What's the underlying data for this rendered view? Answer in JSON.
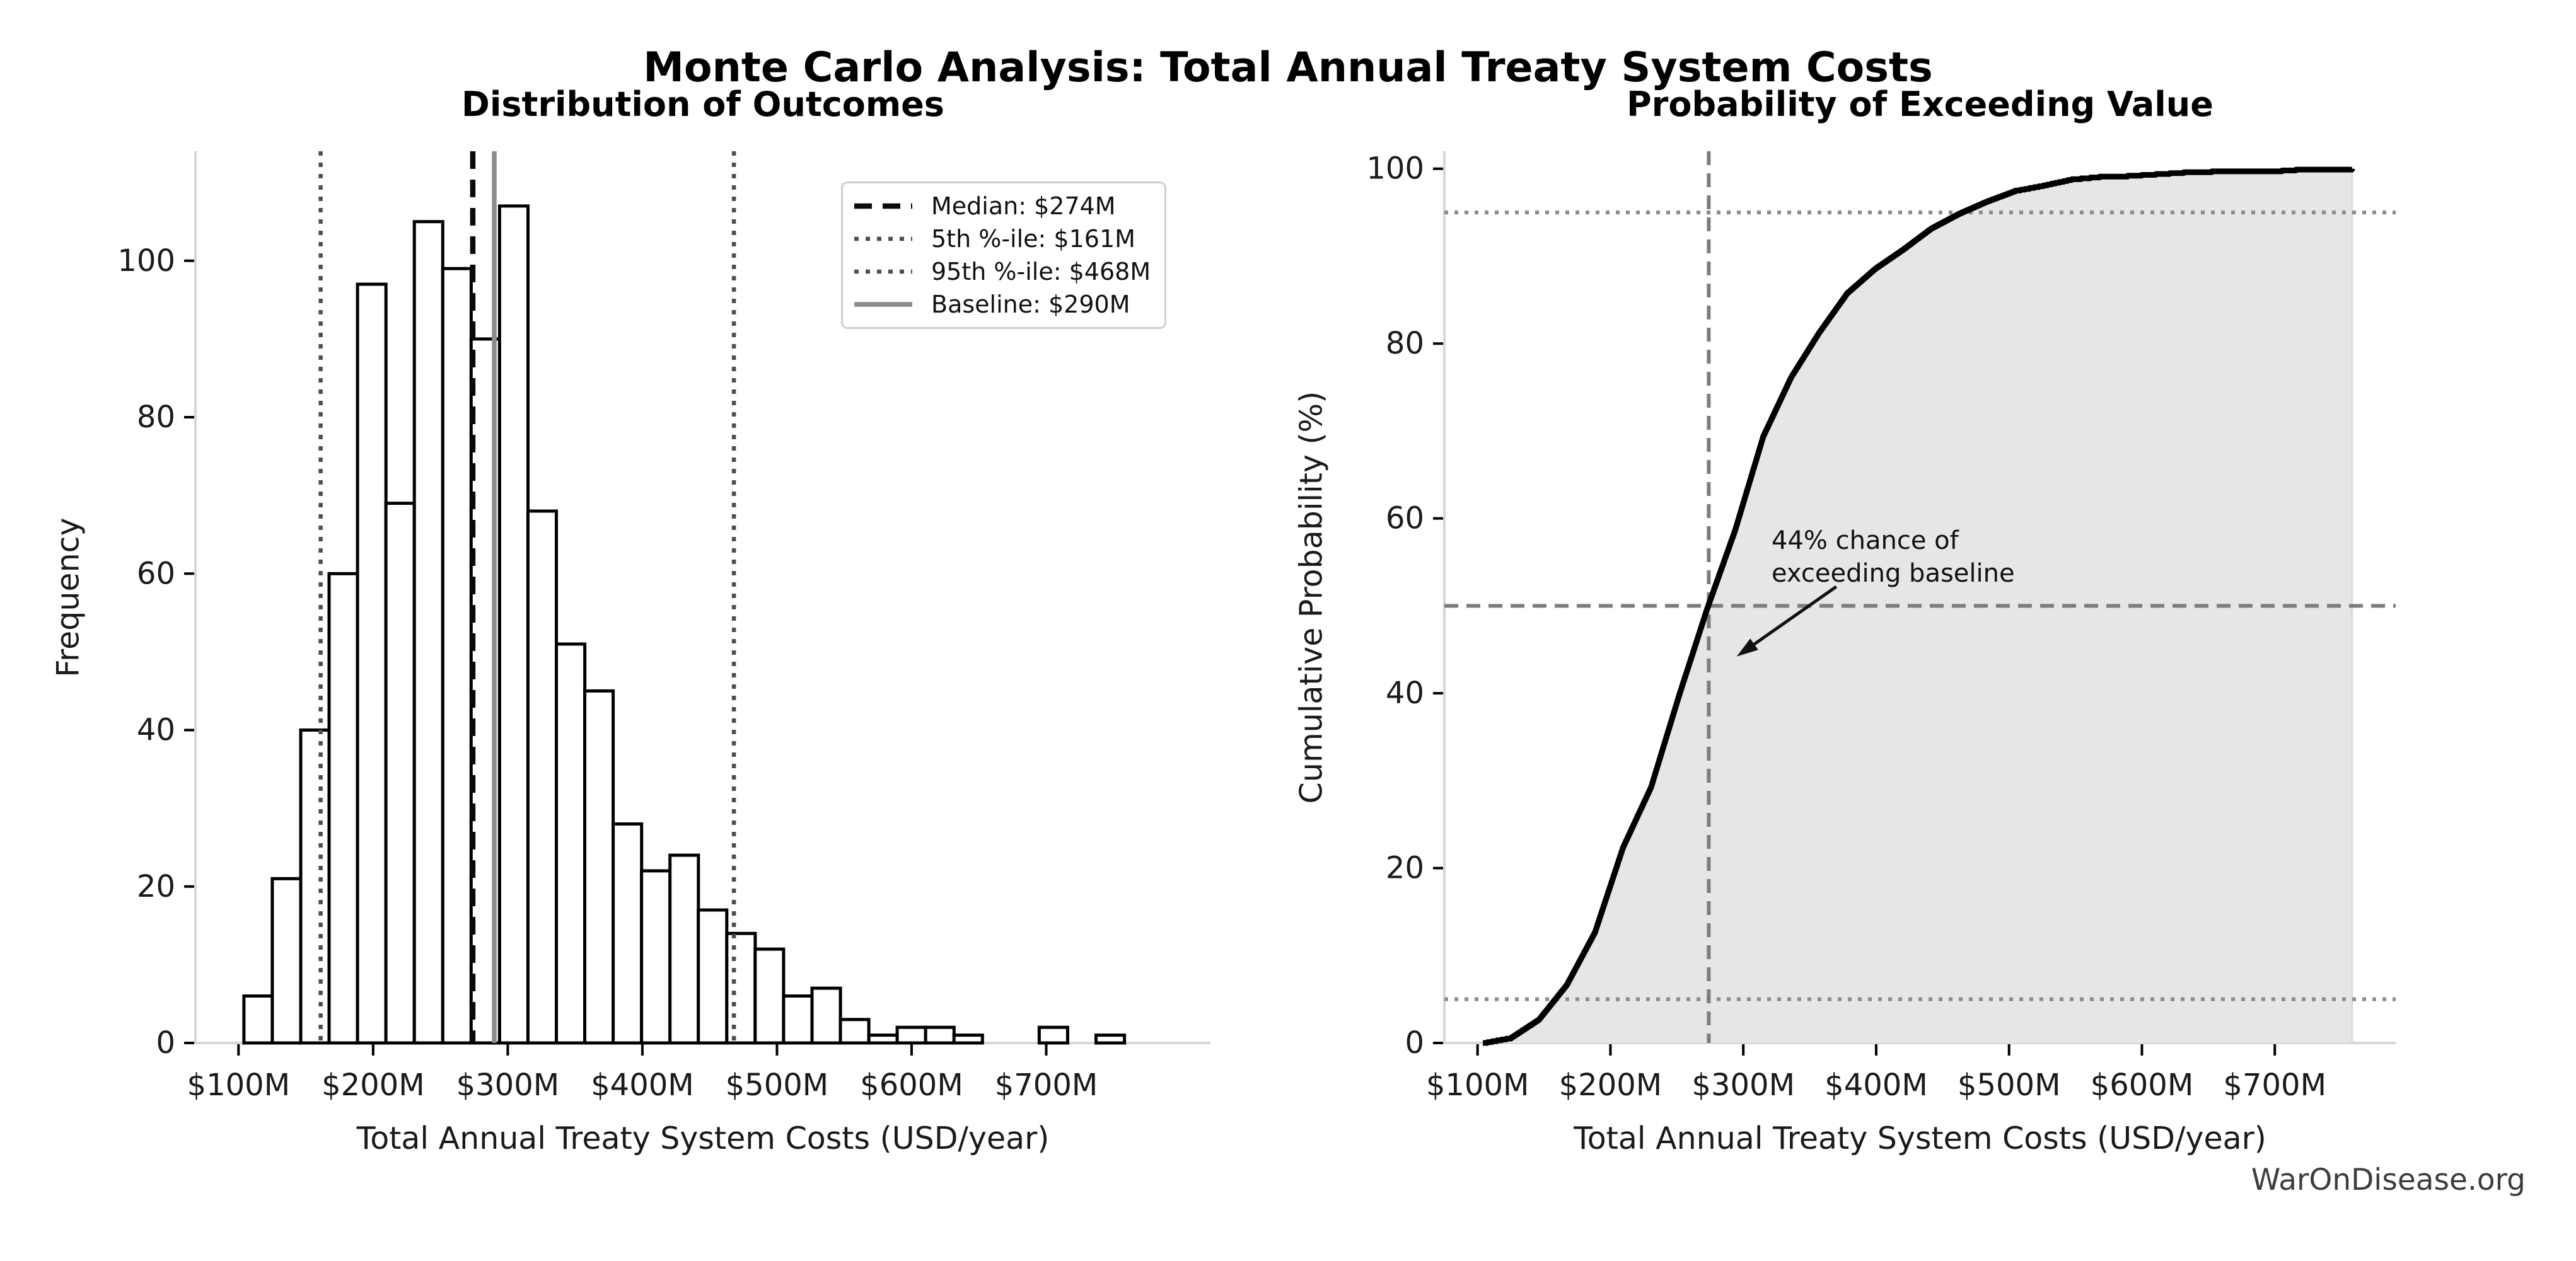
{
  "page": {
    "title": "Monte Carlo Analysis: Total Annual Treaty System Costs",
    "watermark": "WarOnDisease.org"
  },
  "colors": {
    "bar_fill": "#ffffff",
    "bar_edge": "#000000",
    "median_line": "#0a0a0a",
    "percentile_line": "#4d4d4d",
    "baseline_line": "#8c8c8c",
    "cdf_line": "#000000",
    "cdf_fill": "#e6e6e6",
    "crosshair_dashed": "#7d7d7d",
    "dotted_levels": "#8c8c8c",
    "spine": "#d6d6d6",
    "tick": "#000000",
    "text": "#1a1a1a",
    "watermark": "#3d3d3d"
  },
  "chart_data": [
    {
      "type": "bar",
      "title": "Distribution of Outcomes",
      "xlabel": "Total Annual Treaty System Costs (USD/year)",
      "ylabel": "Frequency",
      "bin_start": 104,
      "bin_width": 21.1,
      "counts": [
        6,
        21,
        40,
        60,
        97,
        69,
        105,
        99,
        90,
        107,
        68,
        51,
        45,
        28,
        22,
        24,
        17,
        14,
        12,
        6,
        7,
        3,
        1,
        2,
        2,
        1,
        0,
        0,
        2,
        0,
        1
      ],
      "x_tick_values": [
        100,
        200,
        300,
        400,
        500,
        600,
        700
      ],
      "x_tick_labels": [
        "$100M",
        "$200M",
        "$300M",
        "$400M",
        "$500M",
        "$600M",
        "$700M"
      ],
      "y_tick_values": [
        0,
        20,
        40,
        60,
        80,
        100
      ],
      "xlim": [
        68,
        822
      ],
      "ylim": [
        0,
        114
      ],
      "grid": false,
      "legend_position": "upper right",
      "ref_lines": [
        {
          "label": "Median: $274M",
          "value": 274,
          "style": "dashed-black"
        },
        {
          "label": "5th %-ile: $161M",
          "value": 161,
          "style": "dotted-dark"
        },
        {
          "label": "95th %-ile: $468M",
          "value": 468,
          "style": "dotted-dark"
        },
        {
          "label": "Baseline: $290M",
          "value": 290,
          "style": "solid-gray"
        }
      ]
    },
    {
      "type": "line",
      "title": "Probability of Exceeding Value",
      "xlabel": "Total Annual Treaty System Costs (USD/year)",
      "ylabel": "Cumulative Probability (%)",
      "x_tick_values": [
        100,
        200,
        300,
        400,
        500,
        600,
        700
      ],
      "x_tick_labels": [
        "$100M",
        "$200M",
        "$300M",
        "$400M",
        "$500M",
        "$600M",
        "$700M"
      ],
      "y_tick_values": [
        0,
        20,
        40,
        60,
        80,
        100
      ],
      "xlim": [
        75,
        791
      ],
      "ylim": [
        0,
        102
      ],
      "cdf_edges": [
        104,
        125.1,
        146.2,
        167.3,
        188.4,
        209.5,
        230.6,
        251.7,
        272.8,
        293.9,
        315,
        336.1,
        357.2,
        378.3,
        399.4,
        420.5,
        441.6,
        462.7,
        483.8,
        504.9,
        526,
        547.1,
        568.2,
        589.3,
        610.4,
        631.5,
        652.6,
        673.7,
        694.8,
        715.9,
        737,
        758.1
      ],
      "cdf_cum_pct": [
        0,
        0.6,
        2.7,
        6.7,
        12.7,
        22.4,
        29.3,
        39.8,
        49.7,
        58.7,
        69.4,
        76.2,
        81.3,
        85.8,
        88.6,
        90.8,
        93.2,
        94.9,
        96.3,
        97.5,
        98.1,
        98.8,
        99.1,
        99.2,
        99.4,
        99.6,
        99.7,
        99.7,
        99.7,
        99.9,
        99.9,
        100
      ],
      "crosshair": {
        "x_value": 274,
        "y_pct": 50
      },
      "dotted_levels_pct": [
        5,
        95
      ],
      "annotation": {
        "lines": [
          "44% chance of",
          "exceeding baseline"
        ],
        "x_value": 321,
        "y_pct": 59.5,
        "arrow_from": {
          "x_value": 370,
          "y_pct": 52.2
        },
        "arrow_to": {
          "x_value": 295,
          "y_pct": 44.2
        }
      }
    }
  ]
}
